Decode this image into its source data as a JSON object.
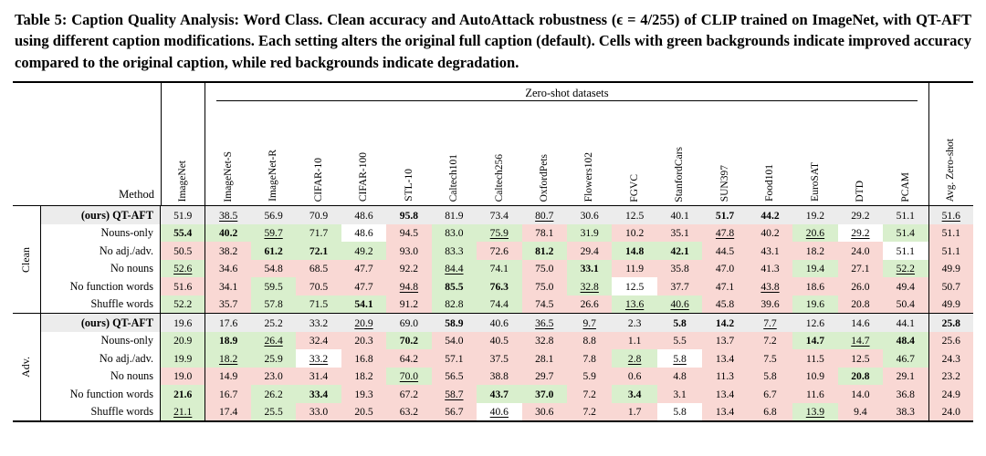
{
  "caption": {
    "text": "Table 5: Caption Quality Analysis: Word Class. Clean accuracy and AutoAttack robustness (ϵ = 4/255) of CLIP trained on ImageNet, with QT-AFT using different caption modifications. Each setting alters the original full caption (default). Cells with green backgrounds indicate improved accuracy compared to the original caption, while red backgrounds indicate degradation."
  },
  "table": {
    "method_header": "Method",
    "zero_shot_span": "Zero-shot datasets",
    "columns": [
      "ImageNet",
      "ImageNet-S",
      "ImageNet-R",
      "CIFAR-10",
      "CIFAR-100",
      "STL-10",
      "Caltech101",
      "Caltech256",
      "OxfordPets",
      "Flowers102",
      "FGVC",
      "StanfordCars",
      "SUN397",
      "Food101",
      "EuroSAT",
      "DTD",
      "PCAM",
      "Avg. Zero-shot"
    ],
    "colors": {
      "improved_bg": "#d9efcd",
      "degraded_bg": "#f9d8d4",
      "baseline_bg": "#ececec"
    },
    "groups": [
      {
        "label": "Clean",
        "rows": [
          {
            "method": "(ours) QT-AFT",
            "baseline": true,
            "values": [
              "51.9",
              "38.5_",
              "56.9",
              "70.9",
              "48.6",
              "95.8*",
              "81.9",
              "73.4",
              "80.7_",
              "30.6",
              "12.5",
              "40.1",
              "51.7*",
              "44.2*",
              "19.2",
              "29.2",
              "51.1",
              "51.6_"
            ]
          },
          {
            "method": "Nouns-only",
            "values": [
              "55.4*",
              "40.2*",
              "59.7_",
              "71.7",
              "48.6",
              "94.5",
              "83.0",
              "75.9_",
              "78.1",
              "31.9",
              "10.2",
              "35.1",
              "47.8_",
              "40.2",
              "20.6_",
              "29.2_",
              "51.4",
              "51.1"
            ]
          },
          {
            "method": "No adj./adv.",
            "values": [
              "50.5",
              "38.2",
              "61.2*",
              "72.1*",
              "49.2",
              "93.0",
              "83.3",
              "72.6",
              "81.2*",
              "29.4",
              "14.8*",
              "42.1*",
              "44.5",
              "43.1",
              "18.2",
              "24.0",
              "51.1",
              "51.1"
            ]
          },
          {
            "method": "No nouns",
            "values": [
              "52.6_",
              "34.6",
              "54.8",
              "68.5",
              "47.7",
              "92.2",
              "84.4_",
              "74.1",
              "75.0",
              "33.1*",
              "11.9",
              "35.8",
              "47.0",
              "41.3",
              "19.4",
              "27.1",
              "52.2_",
              "49.9"
            ]
          },
          {
            "method": "No function words",
            "values": [
              "51.6",
              "34.1",
              "59.5",
              "70.5",
              "47.7",
              "94.8_",
              "85.5*",
              "76.3*",
              "75.0",
              "32.8_",
              "12.5",
              "37.7",
              "47.1",
              "43.8_",
              "18.6",
              "26.0",
              "49.4",
              "50.7"
            ]
          },
          {
            "method": "Shuffle words",
            "values": [
              "52.2",
              "35.7",
              "57.8",
              "71.5",
              "54.1*",
              "91.2",
              "82.8",
              "74.4",
              "74.5",
              "26.6",
              "13.6_",
              "40.6_",
              "45.8",
              "39.6",
              "19.6",
              "20.8",
              "50.4",
              "49.9"
            ]
          }
        ]
      },
      {
        "label": "Adv.",
        "rows": [
          {
            "method": "(ours) QT-AFT",
            "baseline": true,
            "values": [
              "19.6",
              "17.6",
              "25.2",
              "33.2",
              "20.9_",
              "69.0",
              "58.9*",
              "40.6",
              "36.5_",
              "9.7_",
              "2.3",
              "5.8*",
              "14.2*",
              "7.7_",
              "12.6",
              "14.6",
              "44.1",
              "25.8*"
            ]
          },
          {
            "method": "Nouns-only",
            "values": [
              "20.9",
              "18.9*",
              "26.4_",
              "32.4",
              "20.3",
              "70.2*",
              "54.0",
              "40.5",
              "32.8",
              "8.8",
              "1.1",
              "5.5",
              "13.7",
              "7.2",
              "14.7*",
              "14.7_",
              "48.4*",
              "25.6"
            ]
          },
          {
            "method": "No adj./adv.",
            "values": [
              "19.9",
              "18.2_",
              "25.9",
              "33.2_",
              "16.8",
              "64.2",
              "57.1",
              "37.5",
              "28.1",
              "7.8",
              "2.8_",
              "5.8_",
              "13.4",
              "7.5",
              "11.5",
              "12.5",
              "46.7",
              "24.3"
            ]
          },
          {
            "method": "No nouns",
            "values": [
              "19.0",
              "14.9",
              "23.0",
              "31.4",
              "18.2",
              "70.0_",
              "56.5",
              "38.8",
              "29.7",
              "5.9",
              "0.6",
              "4.8",
              "11.3",
              "5.8",
              "10.9",
              "20.8*",
              "29.1",
              "23.2"
            ]
          },
          {
            "method": "No function words",
            "values": [
              "21.6*",
              "16.7",
              "26.2",
              "33.4*",
              "19.3",
              "67.2",
              "58.7_",
              "43.7*",
              "37.0*",
              "7.2",
              "3.4*",
              "3.1",
              "13.4",
              "6.7",
              "11.6",
              "14.0",
              "36.8",
              "24.9"
            ]
          },
          {
            "method": "Shuffle words",
            "values": [
              "21.1_",
              "17.4",
              "25.5",
              "33.0",
              "20.5",
              "63.2",
              "56.7",
              "40.6_",
              "30.6",
              "7.2",
              "1.7",
              "5.8",
              "13.4",
              "6.8",
              "13.9_",
              "9.4",
              "38.3",
              "24.0"
            ]
          }
        ]
      }
    ]
  }
}
